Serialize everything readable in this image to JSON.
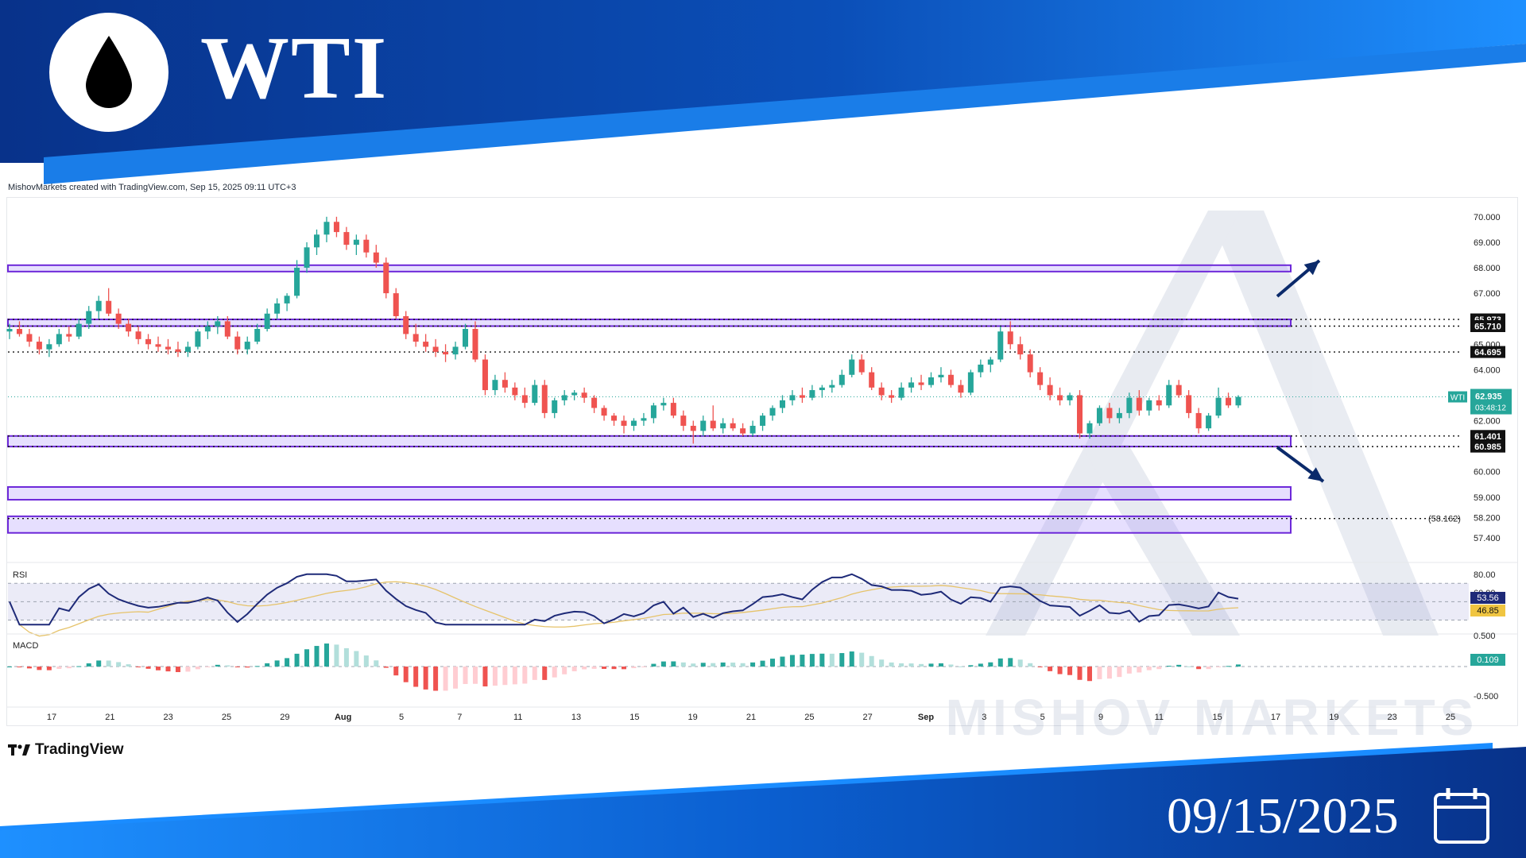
{
  "header": {
    "title": "WTI",
    "icon": "oil-drop-icon",
    "colors": {
      "banner_dark": "#0b3d91",
      "banner_light": "#1e90ff"
    }
  },
  "footer": {
    "date": "09/15/2025",
    "icon": "calendar-icon",
    "tradingview_label": "TradingView"
  },
  "credit": "MishovMarkets created with TradingView.com, Sep 15, 2025 09:11 UTC+3",
  "watermark": "MISHOV MARKETS",
  "chart_data": {
    "type": "candlestick",
    "symbol": "WTI",
    "last_price": "62.935",
    "countdown": "03:48:12",
    "price_axis": {
      "ticks": [
        "70.000",
        "69.000",
        "68.000",
        "67.000",
        "65.000",
        "64.000",
        "62.000",
        "60.000",
        "59.000",
        "58.200",
        "57.400"
      ],
      "range": [
        57.0,
        70.4
      ]
    },
    "level_labels": [
      "65.973",
      "65.710",
      "64.695",
      "61.401",
      "60.985"
    ],
    "side_note": "(58.162)",
    "zones": [
      {
        "low": 67.85,
        "high": 68.1
      },
      {
        "low": 65.71,
        "high": 65.973
      },
      {
        "low": 60.985,
        "high": 61.401
      },
      {
        "low": 58.9,
        "high": 59.4
      },
      {
        "low": 57.6,
        "high": 58.25
      }
    ],
    "dotted_levels": [
      65.973,
      65.71,
      64.695,
      61.401,
      60.985,
      58.162
    ],
    "scenario_arrows": [
      "up",
      "down"
    ],
    "x_labels": [
      "17",
      "21",
      "23",
      "25",
      "29",
      "Aug",
      "5",
      "7",
      "11",
      "13",
      "15",
      "19",
      "21",
      "25",
      "27",
      "Sep",
      "3",
      "5",
      "9",
      "11",
      "15",
      "17",
      "19",
      "23",
      "25"
    ],
    "candles": [
      [
        65.5,
        65.8,
        65.2,
        65.6
      ],
      [
        65.6,
        65.9,
        65.3,
        65.4
      ],
      [
        65.4,
        65.6,
        64.9,
        65.1
      ],
      [
        65.1,
        65.3,
        64.6,
        64.8
      ],
      [
        64.8,
        65.2,
        64.5,
        65.0
      ],
      [
        65.0,
        65.6,
        64.9,
        65.4
      ],
      [
        65.4,
        65.7,
        65.1,
        65.3
      ],
      [
        65.3,
        66.0,
        65.2,
        65.8
      ],
      [
        65.8,
        66.5,
        65.6,
        66.3
      ],
      [
        66.3,
        66.9,
        66.0,
        66.7
      ],
      [
        66.7,
        67.2,
        66.1,
        66.2
      ],
      [
        66.2,
        66.4,
        65.6,
        65.8
      ],
      [
        65.8,
        66.0,
        65.3,
        65.5
      ],
      [
        65.5,
        65.7,
        65.0,
        65.2
      ],
      [
        65.2,
        65.4,
        64.8,
        65.0
      ],
      [
        65.0,
        65.3,
        64.7,
        64.9
      ],
      [
        64.9,
        65.2,
        64.6,
        64.8
      ],
      [
        64.8,
        65.1,
        64.5,
        64.7
      ],
      [
        64.7,
        65.1,
        64.5,
        64.9
      ],
      [
        64.9,
        65.6,
        64.8,
        65.5
      ],
      [
        65.5,
        65.9,
        65.2,
        65.7
      ],
      [
        65.7,
        66.1,
        65.4,
        65.9
      ],
      [
        65.9,
        66.1,
        65.2,
        65.3
      ],
      [
        65.3,
        65.5,
        64.6,
        64.8
      ],
      [
        64.8,
        65.3,
        64.6,
        65.1
      ],
      [
        65.1,
        65.8,
        65.0,
        65.6
      ],
      [
        65.6,
        66.4,
        65.5,
        66.2
      ],
      [
        66.2,
        66.8,
        66.0,
        66.6
      ],
      [
        66.6,
        67.0,
        66.3,
        66.9
      ],
      [
        66.9,
        68.3,
        66.8,
        68.0
      ],
      [
        68.0,
        69.0,
        67.8,
        68.8
      ],
      [
        68.8,
        69.5,
        68.5,
        69.3
      ],
      [
        69.3,
        70.0,
        69.0,
        69.8
      ],
      [
        69.8,
        70.0,
        69.2,
        69.4
      ],
      [
        69.4,
        69.6,
        68.7,
        68.9
      ],
      [
        68.9,
        69.3,
        68.5,
        69.1
      ],
      [
        69.1,
        69.3,
        68.4,
        68.6
      ],
      [
        68.6,
        68.9,
        68.0,
        68.2
      ],
      [
        68.2,
        68.4,
        66.8,
        67.0
      ],
      [
        67.0,
        67.2,
        66.0,
        66.1
      ],
      [
        66.1,
        66.3,
        65.2,
        65.4
      ],
      [
        65.4,
        65.8,
        64.9,
        65.1
      ],
      [
        65.1,
        65.4,
        64.7,
        64.9
      ],
      [
        64.9,
        65.2,
        64.5,
        64.7
      ],
      [
        64.7,
        65.0,
        64.3,
        64.6
      ],
      [
        64.6,
        65.1,
        64.4,
        64.9
      ],
      [
        64.9,
        65.8,
        64.8,
        65.6
      ],
      [
        65.6,
        65.9,
        64.3,
        64.4
      ],
      [
        64.4,
        64.6,
        63.0,
        63.2
      ],
      [
        63.2,
        63.8,
        63.0,
        63.6
      ],
      [
        63.6,
        63.9,
        63.1,
        63.3
      ],
      [
        63.3,
        63.5,
        62.8,
        63.0
      ],
      [
        63.0,
        63.3,
        62.5,
        62.7
      ],
      [
        62.7,
        63.6,
        62.6,
        63.4
      ],
      [
        63.4,
        63.6,
        62.1,
        62.3
      ],
      [
        62.3,
        62.9,
        62.1,
        62.8
      ],
      [
        62.8,
        63.2,
        62.6,
        63.0
      ],
      [
        63.0,
        63.2,
        62.8,
        63.1
      ],
      [
        63.1,
        63.3,
        62.7,
        62.9
      ],
      [
        62.9,
        63.0,
        62.3,
        62.5
      ],
      [
        62.5,
        62.6,
        62.0,
        62.2
      ],
      [
        62.2,
        62.3,
        61.8,
        62.0
      ],
      [
        62.0,
        62.2,
        61.5,
        61.8
      ],
      [
        61.8,
        62.1,
        61.6,
        62.0
      ],
      [
        62.0,
        62.3,
        61.8,
        62.1
      ],
      [
        62.1,
        62.7,
        61.9,
        62.6
      ],
      [
        62.6,
        62.9,
        62.4,
        62.7
      ],
      [
        62.7,
        62.9,
        62.1,
        62.2
      ],
      [
        62.2,
        62.4,
        61.6,
        61.8
      ],
      [
        61.8,
        62.0,
        61.1,
        61.6
      ],
      [
        61.6,
        62.2,
        61.4,
        62.0
      ],
      [
        62.0,
        62.6,
        61.6,
        61.7
      ],
      [
        61.7,
        62.1,
        61.5,
        61.9
      ],
      [
        61.9,
        62.1,
        61.6,
        61.7
      ],
      [
        61.7,
        61.9,
        61.4,
        61.5
      ],
      [
        61.5,
        62.0,
        61.4,
        61.8
      ],
      [
        61.8,
        62.3,
        61.6,
        62.2
      ],
      [
        62.2,
        62.6,
        62.0,
        62.5
      ],
      [
        62.5,
        63.0,
        62.3,
        62.8
      ],
      [
        62.8,
        63.2,
        62.6,
        63.0
      ],
      [
        63.0,
        63.3,
        62.7,
        62.9
      ],
      [
        62.9,
        63.4,
        62.8,
        63.2
      ],
      [
        63.2,
        63.4,
        62.9,
        63.3
      ],
      [
        63.3,
        63.6,
        63.1,
        63.4
      ],
      [
        63.4,
        64.0,
        63.3,
        63.8
      ],
      [
        63.8,
        64.6,
        63.7,
        64.4
      ],
      [
        64.4,
        64.6,
        63.8,
        63.9
      ],
      [
        63.9,
        64.1,
        63.2,
        63.3
      ],
      [
        63.3,
        63.5,
        62.8,
        63.0
      ],
      [
        63.0,
        63.2,
        62.7,
        62.9
      ],
      [
        62.9,
        63.5,
        62.8,
        63.3
      ],
      [
        63.3,
        63.7,
        63.1,
        63.5
      ],
      [
        63.5,
        63.8,
        63.2,
        63.4
      ],
      [
        63.4,
        63.9,
        63.3,
        63.7
      ],
      [
        63.7,
        64.1,
        63.5,
        63.8
      ],
      [
        63.8,
        64.0,
        63.3,
        63.4
      ],
      [
        63.4,
        63.6,
        62.9,
        63.1
      ],
      [
        63.1,
        64.0,
        63.0,
        63.9
      ],
      [
        63.9,
        64.4,
        63.7,
        64.2
      ],
      [
        64.2,
        64.5,
        63.9,
        64.4
      ],
      [
        64.4,
        65.7,
        64.3,
        65.5
      ],
      [
        65.5,
        65.9,
        64.8,
        65.0
      ],
      [
        65.0,
        65.3,
        64.4,
        64.6
      ],
      [
        64.6,
        64.8,
        63.7,
        63.9
      ],
      [
        63.9,
        64.1,
        63.2,
        63.4
      ],
      [
        63.4,
        63.7,
        62.8,
        63.0
      ],
      [
        63.0,
        63.3,
        62.6,
        62.8
      ],
      [
        62.8,
        63.1,
        62.6,
        63.0
      ],
      [
        63.0,
        63.2,
        61.3,
        61.5
      ],
      [
        61.5,
        62.0,
        61.3,
        61.9
      ],
      [
        61.9,
        62.6,
        61.8,
        62.5
      ],
      [
        62.5,
        62.7,
        61.9,
        62.1
      ],
      [
        62.1,
        62.5,
        61.9,
        62.3
      ],
      [
        62.3,
        63.1,
        62.1,
        62.9
      ],
      [
        62.9,
        63.2,
        62.2,
        62.4
      ],
      [
        62.4,
        62.9,
        62.2,
        62.8
      ],
      [
        62.8,
        63.0,
        62.4,
        62.6
      ],
      [
        62.6,
        63.6,
        62.5,
        63.4
      ],
      [
        63.4,
        63.6,
        62.9,
        63.0
      ],
      [
        63.0,
        63.2,
        62.1,
        62.3
      ],
      [
        62.3,
        62.5,
        61.5,
        61.7
      ],
      [
        61.7,
        62.3,
        61.6,
        62.2
      ],
      [
        62.2,
        63.3,
        62.1,
        62.9
      ],
      [
        62.9,
        63.1,
        62.5,
        62.6
      ],
      [
        62.6,
        63.0,
        62.5,
        62.935
      ]
    ],
    "rsi": {
      "label": "RSI",
      "axis_ticks": [
        "80.00",
        "60.00"
      ],
      "value": "53.56",
      "signal": "46.85",
      "band": [
        30,
        70
      ]
    },
    "macd": {
      "label": "MACD",
      "axis_ticks": [
        "0.500",
        "-0.500"
      ],
      "value": "0.109"
    }
  }
}
